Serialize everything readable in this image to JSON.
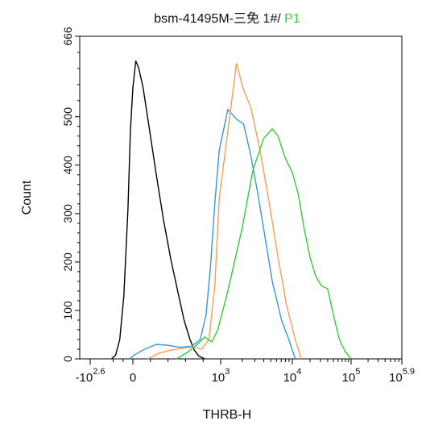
{
  "chart_data": {
    "type": "line",
    "title": {
      "prefix": "bsm-41495M-三免 1#/ ",
      "suffix": "P1",
      "suffix_color": "#33cc33"
    },
    "xlabel": "THRB-H",
    "ylabel": "Count",
    "ylim": [
      0,
      666
    ],
    "yticks": [
      "0",
      "100",
      "200",
      "300",
      "400",
      "500",
      "666"
    ],
    "ytick_values": [
      0,
      100,
      200,
      300,
      400,
      500,
      666
    ],
    "xticks": [
      {
        "base": "-10",
        "exp": "2.6",
        "value": -2.6
      },
      {
        "base": "0",
        "exp": "",
        "value": 0
      },
      {
        "base": "10",
        "exp": "3",
        "value": 3
      },
      {
        "base": "10",
        "exp": "4",
        "value": 4
      },
      {
        "base": "10",
        "exp": "5",
        "value": 5
      },
      {
        "base": "10",
        "exp": "5.9",
        "value": 5.9
      }
    ],
    "x_axis_scale": "biexponential",
    "grid": false,
    "series": [
      {
        "color": "#000000",
        "x": [
          -1.3,
          -1.05,
          -0.8,
          -0.55,
          -0.3,
          -0.15,
          0.0,
          0.1,
          0.2,
          0.35,
          0.55,
          0.8,
          1.05,
          1.3,
          1.55,
          1.75,
          1.95,
          2.1,
          2.25,
          2.45
        ],
        "y": [
          0,
          8,
          40,
          130,
          310,
          470,
          560,
          615,
          600,
          560,
          480,
          380,
          285,
          205,
          135,
          80,
          40,
          18,
          6,
          0
        ]
      },
      {
        "color": "#3399dd",
        "x": [
          -0.2,
          0.05,
          0.4,
          0.8,
          1.2,
          1.6,
          2.0,
          2.3,
          2.5,
          2.65,
          2.8,
          2.95,
          3.1,
          3.22,
          3.32,
          3.42,
          3.52,
          3.62,
          3.72,
          3.85,
          3.95,
          4.05
        ],
        "y": [
          0,
          8,
          20,
          30,
          28,
          24,
          26,
          40,
          90,
          190,
          320,
          430,
          515,
          495,
          485,
          420,
          340,
          250,
          160,
          80,
          40,
          0
        ]
      },
      {
        "color": "#ff9955",
        "x": [
          0.5,
          0.9,
          1.3,
          1.7,
          2.1,
          2.35,
          2.6,
          2.8,
          2.95,
          3.1,
          3.22,
          3.32,
          3.42,
          3.55,
          3.68,
          3.8,
          3.92,
          4.05,
          4.15
        ],
        "y": [
          0,
          12,
          18,
          22,
          25,
          20,
          40,
          150,
          330,
          470,
          610,
          555,
          520,
          430,
          320,
          210,
          110,
          40,
          0
        ]
      },
      {
        "color": "#33cc33",
        "x": [
          1.5,
          1.9,
          2.2,
          2.45,
          2.7,
          2.9,
          3.1,
          3.3,
          3.45,
          3.6,
          3.72,
          3.8,
          3.9,
          4.0,
          4.1,
          4.2,
          4.3,
          4.4,
          4.5,
          4.6,
          4.7,
          4.8,
          4.9,
          5.0
        ],
        "y": [
          0,
          15,
          30,
          45,
          35,
          60,
          140,
          270,
          390,
          455,
          475,
          460,
          415,
          385,
          340,
          270,
          210,
          170,
          150,
          145,
          90,
          40,
          15,
          0
        ]
      }
    ]
  }
}
